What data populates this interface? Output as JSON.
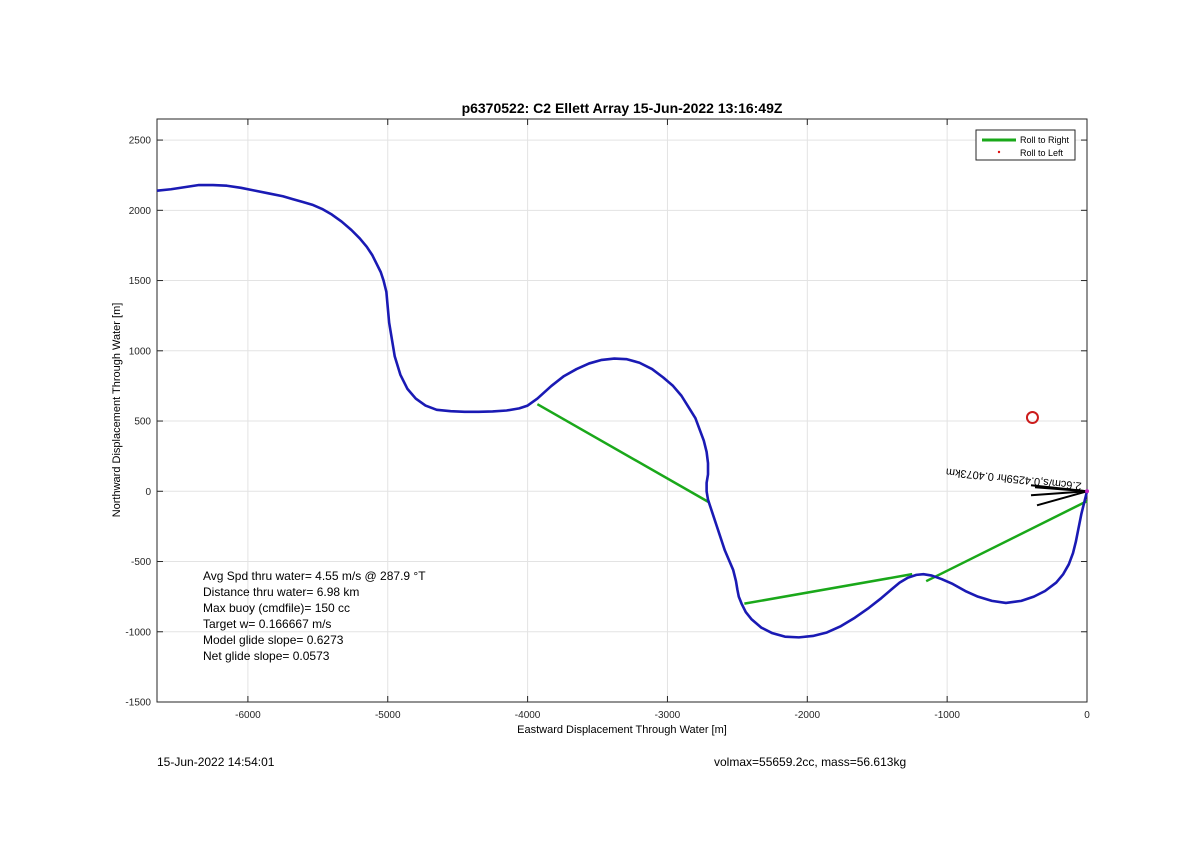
{
  "chart_data": {
    "type": "line",
    "title": "p6370522: C2 Ellett Array 15-Jun-2022 13:16:49Z",
    "xlabel": "Eastward Displacement Through Water [m]",
    "ylabel": "Northward Displacement Through Water [m]",
    "xlim": [
      -6650,
      0
    ],
    "ylim": [
      -1500,
      2650
    ],
    "xticks": [
      -6000,
      -5000,
      -4000,
      -3000,
      -2000,
      -1000,
      0
    ],
    "yticks": [
      -1500,
      -1000,
      -500,
      0,
      500,
      1000,
      1500,
      2000,
      2500
    ],
    "grid": true,
    "legend": {
      "placement": "top-right",
      "entries": [
        "Roll to Right",
        "Roll to Left"
      ]
    },
    "colors": {
      "track": "#1a1ab4",
      "roll_right": "#1aa81a",
      "roll_left": "#e01010",
      "marker": "#cc1c1c",
      "current": "#000000"
    },
    "series": [
      {
        "name": "",
        "x": [
          0,
          -20,
          -40,
          -60,
          -80,
          -100,
          -130,
          -170,
          -220,
          -300,
          -380,
          -470,
          -580,
          -680,
          -780,
          -870,
          -960,
          -1040,
          -1110,
          -1170,
          -1220,
          -1280,
          -1340,
          -1400,
          -1470,
          -1560,
          -1660,
          -1760,
          -1860,
          -1960,
          -2060,
          -2160,
          -2250,
          -2330,
          -2400,
          -2440,
          -2470,
          -2490,
          -2500,
          -2510,
          -2530,
          -2560,
          -2590,
          -2610,
          -2630,
          -2650,
          -2670,
          -2690,
          -2710,
          -2720,
          -2720,
          -2710,
          -2710,
          -2720,
          -2740,
          -2770,
          -2800,
          -2850,
          -2900,
          -2960,
          -3030,
          -3110,
          -3200,
          -3290,
          -3380,
          -3470,
          -3560,
          -3650,
          -3740,
          -3830,
          -3930,
          -4000,
          -4060,
          -4150,
          -4250,
          -4350,
          -4450,
          -4550,
          -4650,
          -4730,
          -4800,
          -4860,
          -4910,
          -4950,
          -4970,
          -4990,
          -5000,
          -5010,
          -5030,
          -5050,
          -5080,
          -5110,
          -5150,
          -5200,
          -5260,
          -5330,
          -5400,
          -5470,
          -5540,
          -5610,
          -5680,
          -5750,
          -5850,
          -5950,
          -6050,
          -6150,
          -6250,
          -6350,
          -6450,
          -6550,
          -6650
        ],
        "y": [
          0,
          -80,
          -160,
          -260,
          -360,
          -440,
          -520,
          -590,
          -650,
          -710,
          -750,
          -780,
          -795,
          -780,
          -750,
          -710,
          -660,
          -625,
          -600,
          -590,
          -595,
          -615,
          -650,
          -700,
          -760,
          -830,
          -900,
          -960,
          -1005,
          -1030,
          -1040,
          -1035,
          -1010,
          -970,
          -910,
          -860,
          -800,
          -750,
          -700,
          -640,
          -560,
          -490,
          -420,
          -360,
          -300,
          -240,
          -180,
          -120,
          -60,
          0,
          60,
          120,
          200,
          280,
          360,
          440,
          520,
          600,
          680,
          750,
          810,
          870,
          915,
          940,
          945,
          935,
          910,
          870,
          820,
          750,
          660,
          610,
          590,
          575,
          568,
          566,
          566,
          570,
          580,
          610,
          660,
          730,
          830,
          960,
          1080,
          1200,
          1310,
          1420,
          1500,
          1560,
          1620,
          1680,
          1740,
          1800,
          1860,
          1920,
          1970,
          2010,
          2040,
          2060,
          2080,
          2100,
          2120,
          2140,
          2160,
          2175,
          2180,
          2180,
          2165,
          2150,
          2140
        ]
      },
      {
        "name": "Roll to Right",
        "segments": [
          {
            "x": [
              -3930,
              -2700
            ],
            "y": [
              620,
              -80
            ]
          },
          {
            "x": [
              -2450,
              -1250
            ],
            "y": [
              -800,
              -590
            ]
          },
          {
            "x": [
              -1150,
              0
            ],
            "y": [
              -640,
              -70
            ]
          }
        ]
      }
    ],
    "markers": [
      {
        "x": -390,
        "y": 525,
        "shape": "circle"
      }
    ],
    "current_vector": {
      "x": 0,
      "y": 0,
      "label": "2.6cm/s,0.4259hr 0.4073km"
    },
    "annotations": [
      "Avg Spd thru water=  4.55 m/s @ 287.9 °T",
      "Distance thru water=  6.98 km",
      "Max buoy (cmdfile)= 150 cc",
      "Target w= 0.166667 m/s",
      "Model glide slope= 0.6273",
      "Net glide slope= 0.0573"
    ]
  },
  "footer": {
    "left": "15-Jun-2022 14:54:01",
    "right": "volmax=55659.2cc, mass=56.613kg"
  }
}
